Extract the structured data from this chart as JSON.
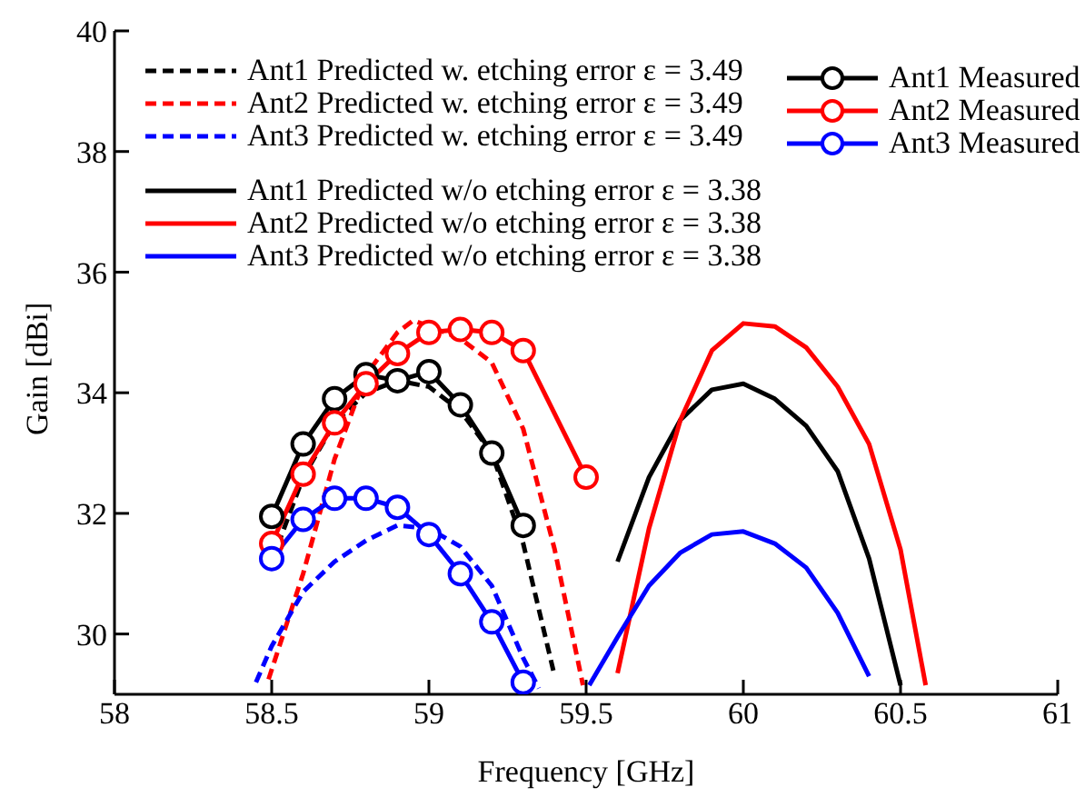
{
  "chart_data": {
    "type": "line",
    "xlabel": "Frequency [GHz]",
    "ylabel": "Gain [dBi]",
    "xlim": [
      58,
      61
    ],
    "xticks": [
      58,
      58.5,
      59,
      59.5,
      60,
      60.5,
      61
    ],
    "ylim": [
      29,
      40
    ],
    "yticks": [
      30,
      32,
      34,
      36,
      38,
      40
    ],
    "grid": false,
    "legend": "top",
    "series": [
      {
        "name": "Ant1 Predicted w. etching error ε = 3.49",
        "color": "#000000",
        "line_style": "dashed",
        "marker": "none",
        "x": [
          58.5,
          58.6,
          58.7,
          58.8,
          58.9,
          59.0,
          59.1,
          59.2,
          59.3,
          59.4
        ],
        "values": [
          31.2,
          32.6,
          33.5,
          34.0,
          34.2,
          34.1,
          33.7,
          33.0,
          31.5,
          29.3
        ]
      },
      {
        "name": "Ant2 Predicted w. etching error ε = 3.49",
        "color": "#ff0000",
        "line_style": "dashed",
        "marker": "none",
        "x": [
          58.49,
          58.6,
          58.7,
          58.8,
          58.9,
          58.95,
          59.0,
          59.1,
          59.2,
          59.3,
          59.4,
          59.49
        ],
        "values": [
          29.25,
          31.0,
          32.9,
          34.3,
          35.0,
          35.2,
          35.1,
          34.9,
          34.5,
          33.4,
          31.4,
          29.15
        ]
      },
      {
        "name": "Ant3 Predicted w. etching error ε = 3.49",
        "color": "#0000ff",
        "line_style": "dashed",
        "marker": "none",
        "x": [
          58.45,
          58.5,
          58.6,
          58.7,
          58.8,
          58.9,
          59.0,
          59.1,
          59.2,
          59.3,
          59.35
        ],
        "values": [
          29.2,
          29.8,
          30.7,
          31.2,
          31.55,
          31.8,
          31.75,
          31.45,
          30.8,
          29.6,
          29.1
        ]
      },
      {
        "name": "Ant1 Predicted w/o etching error ε = 3.38",
        "color": "#000000",
        "line_style": "solid",
        "marker": "none",
        "x": [
          59.6,
          59.7,
          59.8,
          59.9,
          60.0,
          60.1,
          60.2,
          60.3,
          60.4,
          60.5
        ],
        "values": [
          31.2,
          32.6,
          33.55,
          34.05,
          34.15,
          33.9,
          33.45,
          32.7,
          31.25,
          29.15
        ]
      },
      {
        "name": "Ant2 Predicted w/o etching error ε = 3.38",
        "color": "#ff0000",
        "line_style": "solid",
        "marker": "none",
        "x": [
          59.6,
          59.7,
          59.8,
          59.9,
          60.0,
          60.1,
          60.2,
          60.3,
          60.4,
          60.5,
          60.58
        ],
        "values": [
          29.35,
          31.75,
          33.55,
          34.7,
          35.15,
          35.1,
          34.75,
          34.1,
          33.15,
          31.4,
          29.15
        ]
      },
      {
        "name": "Ant3 Predicted w/o etching error ε = 3.38",
        "color": "#0000ff",
        "line_style": "solid",
        "marker": "none",
        "x": [
          59.51,
          59.6,
          59.7,
          59.8,
          59.9,
          60.0,
          60.1,
          60.2,
          60.3,
          60.4
        ],
        "values": [
          29.15,
          29.95,
          30.8,
          31.35,
          31.65,
          31.7,
          31.5,
          31.1,
          30.35,
          29.3
        ]
      },
      {
        "name": "Ant1 Measured",
        "color": "#000000",
        "line_style": "solid",
        "marker": "circle",
        "x": [
          58.5,
          58.6,
          58.7,
          58.8,
          58.9,
          59.0,
          59.1,
          59.2,
          59.3
        ],
        "values": [
          31.95,
          33.15,
          33.9,
          34.3,
          34.2,
          34.35,
          33.8,
          33.0,
          31.8
        ]
      },
      {
        "name": "Ant2 Measured",
        "color": "#ff0000",
        "line_style": "solid",
        "marker": "circle",
        "x": [
          58.5,
          58.6,
          58.7,
          58.8,
          58.9,
          59.0,
          59.1,
          59.2,
          59.3,
          59.5
        ],
        "values": [
          31.5,
          32.65,
          33.5,
          34.15,
          34.65,
          35.0,
          35.05,
          35.0,
          34.7,
          32.6
        ]
      },
      {
        "name": "Ant3 Measured",
        "color": "#0000ff",
        "line_style": "solid",
        "marker": "circle",
        "x": [
          58.5,
          58.6,
          58.7,
          58.8,
          58.9,
          59.0,
          59.1,
          59.2,
          59.3
        ],
        "values": [
          31.25,
          31.9,
          32.25,
          32.25,
          32.1,
          31.65,
          31.0,
          30.2,
          29.2
        ]
      }
    ]
  }
}
